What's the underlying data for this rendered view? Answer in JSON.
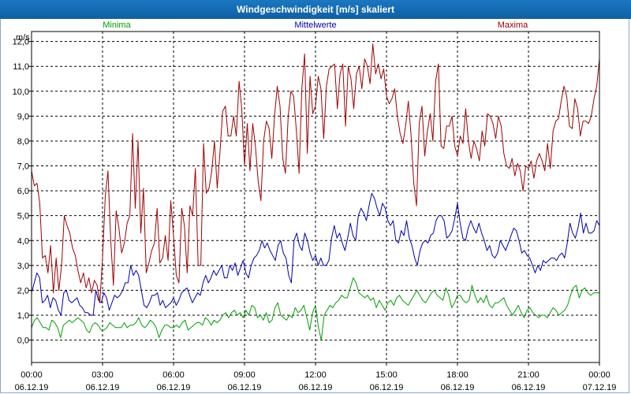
{
  "title": "Windgeschwindigkeit [m/s] skaliert",
  "colors": {
    "title_bar": "#1565b0",
    "min": "#00a000",
    "mean": "#0000b0",
    "max": "#a00000",
    "grid": "#000000"
  },
  "chart_data": {
    "type": "line",
    "ylabel": "m/s",
    "ylim": [
      -0.9,
      12.4
    ],
    "y_ticks": [
      "0,0",
      "1,0",
      "2,0",
      "3,0",
      "4,0",
      "5,0",
      "6,0",
      "7,0",
      "8,0",
      "9,0",
      "10,0",
      "11,0",
      "12,0"
    ],
    "x_ticks": [
      {
        "time": "00:00",
        "date": "06.12.19"
      },
      {
        "time": "03:00",
        "date": "06.12.19"
      },
      {
        "time": "06:00",
        "date": "06.12.19"
      },
      {
        "time": "09:00",
        "date": "06.12.19"
      },
      {
        "time": "12:00",
        "date": "06.12.19"
      },
      {
        "time": "15:00",
        "date": "06.12.19"
      },
      {
        "time": "18:00",
        "date": "06.12.19"
      },
      {
        "time": "21:00",
        "date": "06.12.19"
      },
      {
        "time": "00:00",
        "date": "07.12.19"
      }
    ],
    "x_range_hours": [
      0,
      24
    ],
    "grid": true,
    "series": [
      {
        "name": "Minima",
        "color": "#00a000",
        "values": [
          0.5,
          0.8,
          0.9,
          0.7,
          0.5,
          0.5,
          0.4,
          0.8,
          0.7,
          0.5,
          0.1,
          0.6,
          0.7,
          0.8,
          0.7,
          0.8,
          0.9,
          0.8,
          0.7,
          0.4,
          0.3,
          0.6,
          0.7,
          0.6,
          0.4,
          0.4,
          0.5,
          0.7,
          0.6,
          0.5,
          0.5,
          0.5,
          0.7,
          0.5,
          0.6,
          0.6,
          0.7,
          0.9,
          0.6,
          0.5,
          0.6,
          0.8,
          0.7,
          0.5,
          0.1,
          0.4,
          0.6,
          0.6,
          0.5,
          0.5,
          0.6,
          0.5,
          0.7,
          0.8,
          0.4,
          0.5,
          0.6,
          0.7,
          0.7,
          0.6,
          0.9,
          0.8,
          0.6,
          0.8,
          0.7,
          0.8,
          1.0,
          1.1,
          0.9,
          1.1,
          1.2,
          1.0,
          1.1,
          0.9,
          1.2,
          1.0,
          1.4,
          1.3,
          0.9,
          1.0,
          0.8,
          1.1,
          0.7,
          0.8,
          1.3,
          1.5,
          1.0,
          0.9,
          0.8,
          1.0,
          0.9,
          1.3,
          1.1,
          1.2,
          1.4,
          0.9,
          0.4,
          1.1,
          1.4,
          0.5,
          0.0,
          1.0,
          1.2,
          1.4,
          1.3,
          1.5,
          1.6,
          1.8,
          1.7,
          1.7,
          2.1,
          2.5,
          2.3,
          1.9,
          1.8,
          1.7,
          1.8,
          1.6,
          1.7,
          1.3,
          1.6,
          1.4,
          1.2,
          1.5,
          1.6,
          1.4,
          1.7,
          1.8,
          1.6,
          1.5,
          1.4,
          1.6,
          1.8,
          2.0,
          1.8,
          1.6,
          1.5,
          1.7,
          1.9,
          2.0,
          1.8,
          1.7,
          1.6,
          2.1,
          1.8,
          1.3,
          1.5,
          1.8,
          1.8,
          1.6,
          1.5,
          1.6,
          2.2,
          1.8,
          1.5,
          1.7,
          1.5,
          1.8,
          1.4,
          1.3,
          1.5,
          1.5,
          1.6,
          1.7,
          1.4,
          1.2,
          1.0,
          1.2,
          1.4,
          1.1,
          0.9,
          1.2,
          1.3,
          1.1,
          1.0,
          0.9,
          1.0,
          1.0,
          0.9,
          1.1,
          1.3,
          1.2,
          1.0,
          1.1,
          1.2,
          1.4,
          1.8,
          2.1,
          2.2,
          1.7,
          2.0,
          2.1,
          1.9,
          1.8,
          1.9,
          1.9,
          1.9
        ]
      },
      {
        "name": "Mittelwerte",
        "color": "#0000b0",
        "values": [
          1.9,
          2.3,
          2.7,
          2.5,
          1.5,
          1.6,
          1.8,
          1.3,
          1.7,
          1.6,
          1.2,
          1.0,
          1.9,
          2.0,
          1.6,
          1.5,
          1.6,
          1.7,
          1.4,
          1.3,
          1.1,
          1.1,
          1.0,
          1.0,
          2.0,
          1.6,
          1.5,
          1.9,
          1.7,
          1.2,
          1.5,
          1.8,
          1.7,
          1.8,
          2.0,
          2.3,
          2.3,
          3.0,
          2.6,
          2.8,
          2.6,
          2.0,
          1.4,
          1.3,
          1.5,
          1.8,
          1.8,
          1.9,
          1.4,
          1.6,
          1.3,
          1.4,
          1.5,
          1.7,
          1.4,
          1.6,
          1.9,
          2.0,
          2.1,
          1.8,
          1.5,
          1.7,
          1.9,
          1.8,
          2.3,
          2.6,
          2.3,
          2.5,
          2.8,
          2.6,
          2.8,
          3.0,
          2.5,
          2.5,
          3.0,
          2.8,
          3.1,
          2.6,
          2.9,
          3.2,
          2.7,
          2.5,
          3.0,
          3.3,
          3.4,
          3.6,
          4.0,
          3.7,
          3.9,
          3.6,
          3.4,
          3.2,
          3.8,
          4.0,
          3.5,
          3.3,
          2.6,
          2.3,
          4.0,
          4.3,
          3.8,
          3.6,
          4.3,
          4.0,
          3.5,
          3.2,
          3.4,
          3.0,
          3.3,
          3.0,
          3.0,
          3.2,
          4.1,
          4.6,
          4.1,
          4.3,
          3.9,
          3.6,
          4.1,
          4.7,
          4.2,
          4.0,
          5.0,
          5.3,
          5.1,
          4.8,
          5.4,
          5.9,
          5.7,
          5.3,
          5.0,
          5.5,
          5.3,
          4.8,
          4.6,
          4.8,
          4.0,
          3.9,
          4.4,
          4.2,
          4.8,
          4.1,
          3.8,
          3.3,
          3.0,
          3.6,
          3.9,
          4.0,
          3.9,
          4.2,
          4.3,
          4.8,
          5.0,
          5.0,
          4.8,
          4.1,
          4.2,
          4.4,
          4.9,
          5.5,
          4.7,
          4.1,
          4.0,
          4.5,
          4.8,
          4.5,
          4.3,
          4.7,
          4.3,
          4.0,
          3.6,
          3.8,
          3.4,
          3.3,
          3.5,
          4.0,
          3.8,
          3.6,
          3.9,
          4.2,
          4.5,
          4.4,
          4.0,
          3.5,
          3.6,
          3.4,
          3.3,
          3.0,
          2.7,
          3.0,
          2.8,
          3.2,
          3.1,
          3.2,
          3.3,
          3.3,
          3.2,
          3.4,
          3.5,
          3.3,
          3.9,
          4.7,
          4.3,
          4.1,
          4.5,
          5.1,
          4.3,
          4.7,
          4.3,
          4.3,
          4.4,
          4.8,
          4.6
        ]
      },
      {
        "name": "Maxima",
        "color": "#a00000",
        "values": [
          6.8,
          6.2,
          6.3,
          5.5,
          3.3,
          3.4,
          2.7,
          3.8,
          1.9,
          3.3,
          2.0,
          3.0,
          5.0,
          4.6,
          4.3,
          3.7,
          3.4,
          2.8,
          2.3,
          2.7,
          2.1,
          2.5,
          1.9,
          2.4,
          2.2,
          1.5,
          3.3,
          5.8,
          6.8,
          4.0,
          2.2,
          5.2,
          4.5,
          3.5,
          3.9,
          4.7,
          5.0,
          8.3,
          5.3,
          8.0,
          4.3,
          6.1,
          2.7,
          3.1,
          3.6,
          3.9,
          5.3,
          3.1,
          3.3,
          4.2,
          3.2,
          5.6,
          4.2,
          2.6,
          2.3,
          5.3,
          4.6,
          2.7,
          5.4,
          5.0,
          6.9,
          3.0,
          3.0,
          7.9,
          5.9,
          6.1,
          6.8,
          8.0,
          6.1,
          7.5,
          9.2,
          9.4,
          8.2,
          8.2,
          9.0,
          8.2,
          10.4,
          9.3,
          7.0,
          8.7,
          6.8,
          8.7,
          7.8,
          6.4,
          5.6,
          8.0,
          8.8,
          8.5,
          7.3,
          9.0,
          10.2,
          9.4,
          7.3,
          6.7,
          9.0,
          10.0,
          9.8,
          8.4,
          6.7,
          10.1,
          11.5,
          7.5,
          10.6,
          9.1,
          9.4,
          10.6,
          10.1,
          8.1,
          10.2,
          10.9,
          11.0,
          11.1,
          9.3,
          10.7,
          11.1,
          8.6,
          11.0,
          10.5,
          9.3,
          10.7,
          11.0,
          10.1,
          11.3,
          11.0,
          10.3,
          11.9,
          10.7,
          11.1,
          10.5,
          10.9,
          9.8,
          9.5,
          9.7,
          10.1,
          9.0,
          8.3,
          7.9,
          8.6,
          9.6,
          8.2,
          6.3,
          5.4,
          8.7,
          9.4,
          7.4,
          8.4,
          9.1,
          8.0,
          10.4,
          11.1,
          7.8,
          7.7,
          8.6,
          8.6,
          9.0,
          7.8,
          7.4,
          8.2,
          7.9,
          9.3,
          8.0,
          7.3,
          8.0,
          7.7,
          7.2,
          8.4,
          7.8,
          9.1,
          9.0,
          8.7,
          8.1,
          9.0,
          8.6,
          7.5,
          7.0,
          6.9,
          7.3,
          6.6,
          7.1,
          6.8,
          6.0,
          7.0,
          6.9,
          7.2,
          6.5,
          7.2,
          7.5,
          7.2,
          6.8,
          7.9,
          6.9,
          8.4,
          8.8,
          8.9,
          9.6,
          10.2,
          9.8,
          8.6,
          8.5,
          9.7,
          9.3,
          8.2,
          8.8,
          8.8,
          8.7,
          9.0,
          9.7,
          10.2,
          11.3
        ]
      }
    ]
  }
}
